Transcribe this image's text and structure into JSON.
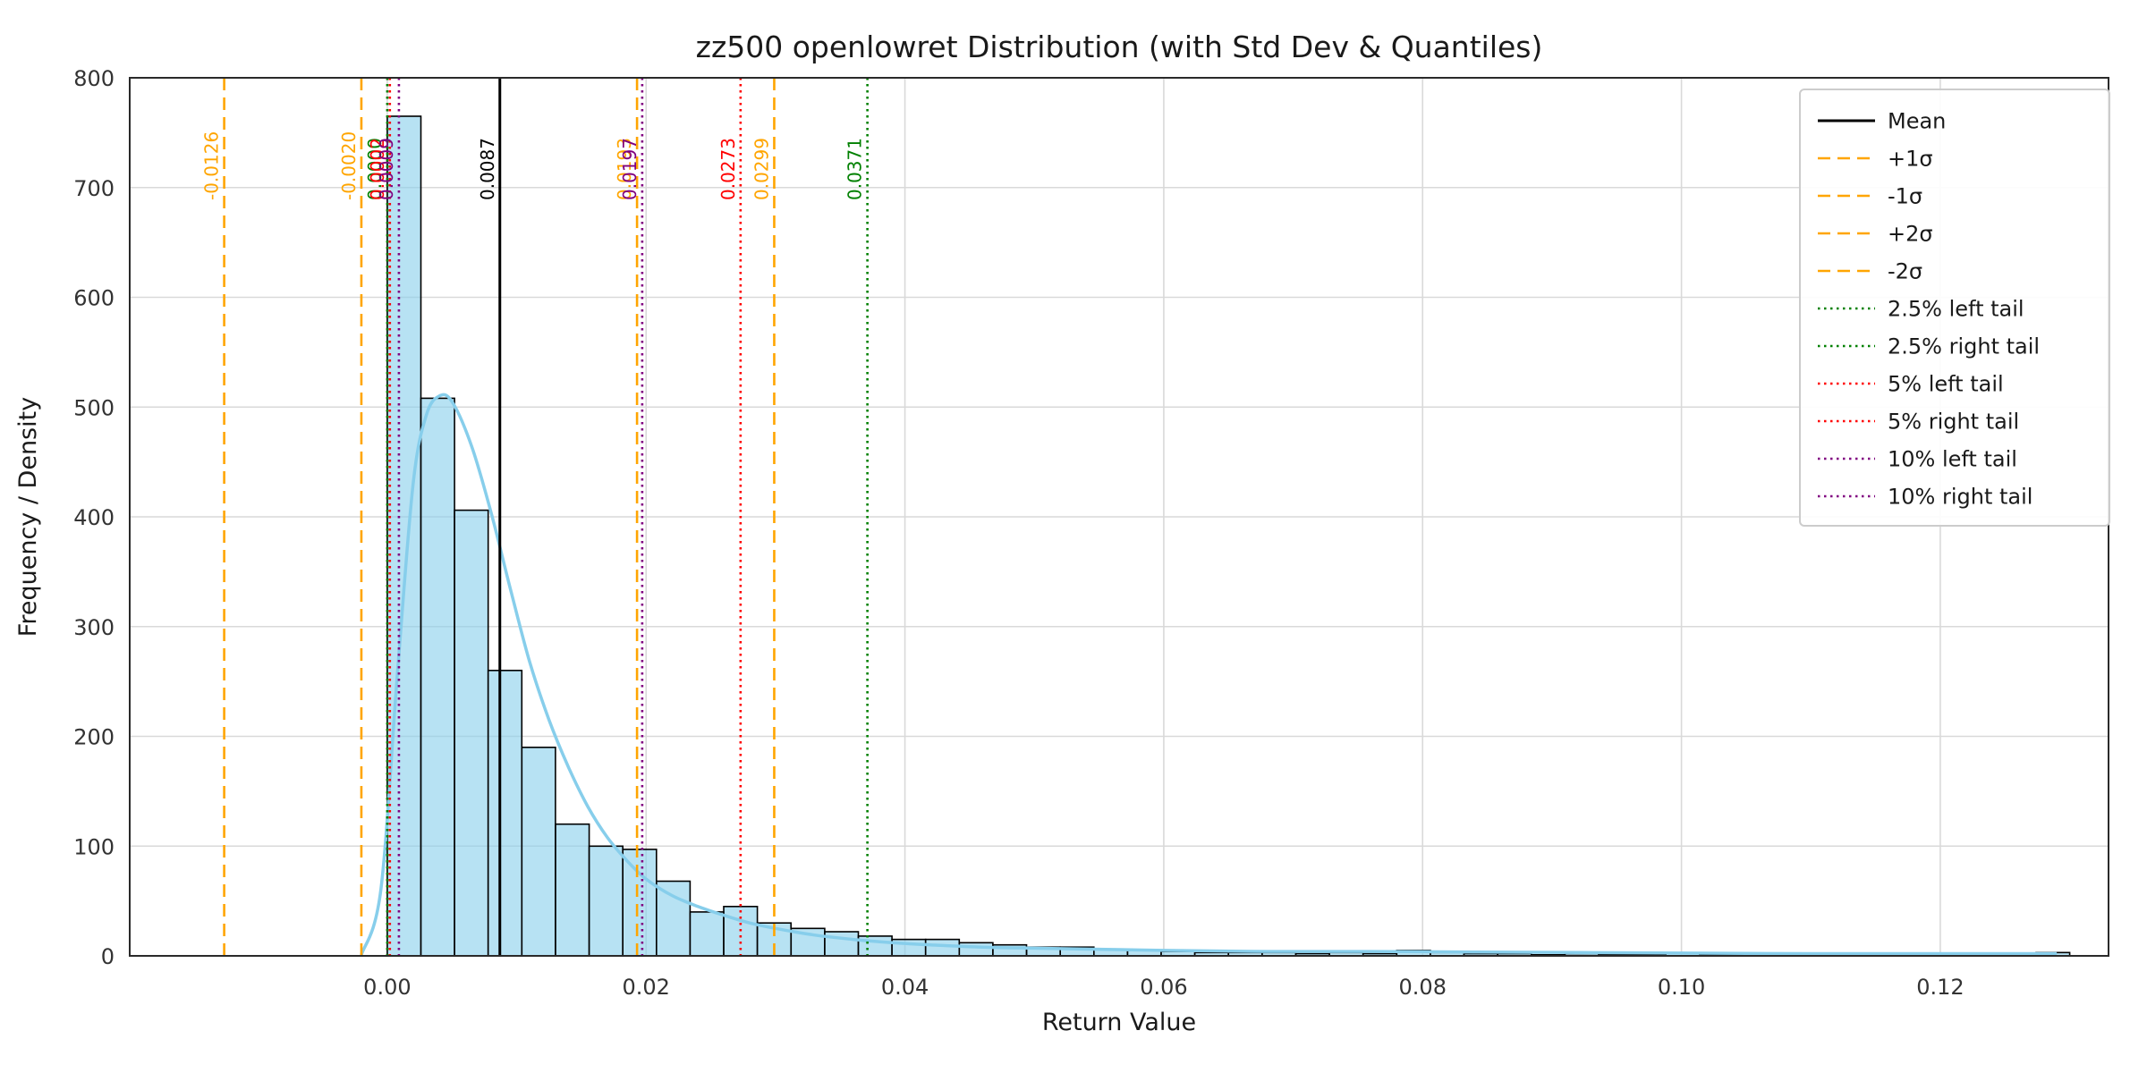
{
  "chart_data": {
    "type": "bar",
    "subtype": "histogram-with-kde",
    "title": "zz500 openlowret Distribution (with Std Dev & Quantiles)",
    "xlabel": "Return Value",
    "ylabel": "Frequency / Density",
    "xlim": [
      -0.0199,
      0.133
    ],
    "ylim": [
      0,
      800
    ],
    "x_ticks": [
      0.0,
      0.02,
      0.04,
      0.06,
      0.08,
      0.1,
      0.12
    ],
    "y_ticks": [
      0,
      100,
      200,
      300,
      400,
      500,
      600,
      700,
      800
    ],
    "grid": true,
    "grid_color": "#d9d9d9",
    "bar_color": "#87CEEB",
    "bar_fill_opacity": 0.6,
    "bar_edge_color": "#000000",
    "bin_start": 0.0,
    "bin_width": 0.0026,
    "bar_values": [
      765,
      508,
      406,
      260,
      190,
      120,
      100,
      97,
      68,
      40,
      45,
      30,
      25,
      22,
      18,
      15,
      15,
      12,
      10,
      8,
      8,
      6,
      5,
      4,
      3,
      3,
      3,
      2,
      3,
      2,
      5,
      3,
      2,
      2,
      1,
      2,
      1,
      1,
      2,
      1,
      1,
      1,
      2,
      1,
      1,
      1,
      1,
      1,
      1,
      3
    ],
    "kde": {
      "color": "#87CEEB",
      "points": [
        [
          -0.002,
          1
        ],
        [
          -0.0005,
          60
        ],
        [
          0.0008,
          260
        ],
        [
          0.002,
          430
        ],
        [
          0.003,
          492
        ],
        [
          0.004,
          510
        ],
        [
          0.005,
          505
        ],
        [
          0.0065,
          465
        ],
        [
          0.008,
          405
        ],
        [
          0.0095,
          335
        ],
        [
          0.011,
          268
        ],
        [
          0.0125,
          215
        ],
        [
          0.014,
          172
        ],
        [
          0.0155,
          136
        ],
        [
          0.017,
          108
        ],
        [
          0.0185,
          87
        ],
        [
          0.02,
          70
        ],
        [
          0.022,
          55
        ],
        [
          0.024,
          45
        ],
        [
          0.026,
          37
        ],
        [
          0.028,
          30
        ],
        [
          0.03,
          25
        ],
        [
          0.033,
          19
        ],
        [
          0.036,
          15
        ],
        [
          0.039,
          12
        ],
        [
          0.042,
          10
        ],
        [
          0.046,
          8
        ],
        [
          0.05,
          7
        ],
        [
          0.055,
          6
        ],
        [
          0.06,
          5
        ],
        [
          0.068,
          4
        ],
        [
          0.076,
          4
        ],
        [
          0.084,
          3.5
        ],
        [
          0.092,
          3
        ],
        [
          0.1,
          2.5
        ],
        [
          0.11,
          2
        ],
        [
          0.12,
          2
        ],
        [
          0.129,
          2
        ]
      ]
    },
    "vlines": [
      {
        "name": "mean",
        "value": 0.0087,
        "label": "0.0087",
        "color": "#000000",
        "style": "solid",
        "legend": "Mean"
      },
      {
        "name": "plus-1sigma",
        "value": 0.0193,
        "label": "0.0193",
        "color": "#FFA500",
        "style": "dashed",
        "legend": "+1σ"
      },
      {
        "name": "minus-1sigma",
        "value": -0.002,
        "label": "-0.0020",
        "color": "#FFA500",
        "style": "dashed",
        "legend": "-1σ"
      },
      {
        "name": "plus-2sigma",
        "value": 0.0299,
        "label": "0.0299",
        "color": "#FFA500",
        "style": "dashed",
        "legend": "+2σ"
      },
      {
        "name": "minus-2sigma",
        "value": -0.0126,
        "label": "-0.0126",
        "color": "#FFA500",
        "style": "dashed",
        "legend": "-2σ"
      },
      {
        "name": "q2-5-left",
        "value": 0.0,
        "label": "0.0000",
        "color": "#008000",
        "style": "dotted",
        "legend": "2.5% left tail"
      },
      {
        "name": "q2-5-right",
        "value": 0.0371,
        "label": "0.0371",
        "color": "#008000",
        "style": "dotted",
        "legend": "2.5% right tail"
      },
      {
        "name": "q5-left",
        "value": 0.0002,
        "label": "0.0002",
        "color": "#FF0000",
        "style": "dotted",
        "legend": "5% left tail"
      },
      {
        "name": "q5-right",
        "value": 0.0273,
        "label": "0.0273",
        "color": "#FF0000",
        "style": "dotted",
        "legend": "5% right tail"
      },
      {
        "name": "q10-left",
        "value": 0.0009,
        "label": "0.0009",
        "color": "#800080",
        "style": "dotted",
        "legend": "10% left tail"
      },
      {
        "name": "q10-right",
        "value": 0.0197,
        "label": "0.0197",
        "color": "#800080",
        "style": "dotted",
        "legend": "10% right tail"
      }
    ],
    "legend": {
      "position": "upper right",
      "entries": [
        "Mean",
        "+1σ",
        "-1σ",
        "+2σ",
        "-2σ",
        "2.5% left tail",
        "2.5% right tail",
        "5% left tail",
        "5% right tail",
        "10% left tail",
        "10% right tail"
      ]
    }
  }
}
